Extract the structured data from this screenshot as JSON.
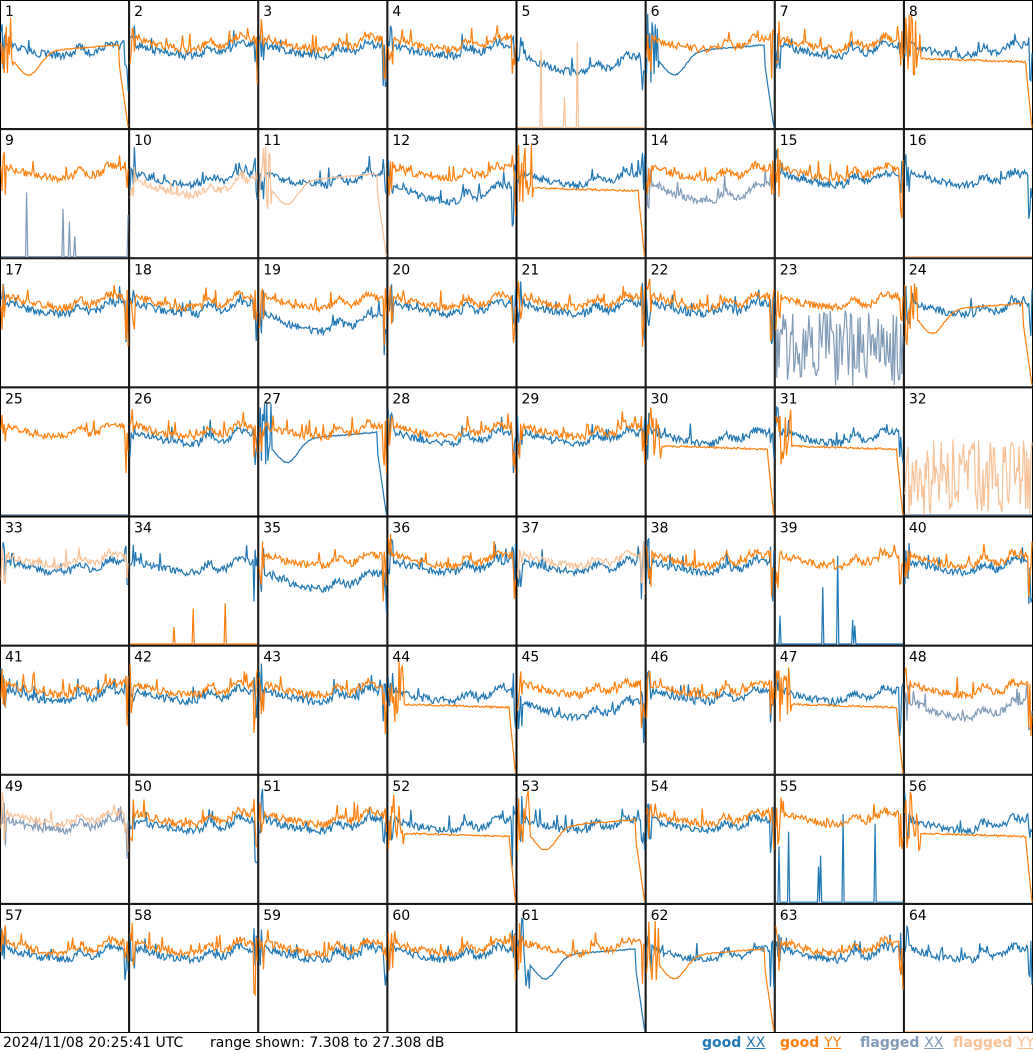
{
  "timestamp": "2024/11/08 20:25:41 UTC",
  "range_text": "range shown: 7.308 to 27.308 dB",
  "legend": {
    "good_xx": {
      "label": "good XX",
      "color": "#1f77b4"
    },
    "good_yy": {
      "label": "good YY",
      "color": "#ff7f0e"
    },
    "flagged_xx": {
      "label": "flagged XX",
      "color": "#7f9bb8"
    },
    "flagged_yy": {
      "label": "flagged YY",
      "color": "#f8c296"
    }
  },
  "chart_data": {
    "type": "line",
    "grid": {
      "rows": 8,
      "cols": 8
    },
    "ylim_db": [
      7.308,
      27.308
    ],
    "panels": [
      {
        "id": "1",
        "xx": "good",
        "yy": "good",
        "xx_shape": "normal",
        "yy_shape": "dip"
      },
      {
        "id": "2",
        "xx": "good",
        "yy": "good",
        "xx_shape": "normal",
        "yy_shape": "normal"
      },
      {
        "id": "3",
        "xx": "good",
        "yy": "good",
        "xx_shape": "normal",
        "yy_shape": "normal"
      },
      {
        "id": "4",
        "xx": "good",
        "yy": "good",
        "xx_shape": "normal",
        "yy_shape": "normal"
      },
      {
        "id": "5",
        "xx": "good",
        "yy": "flagged",
        "xx_shape": "lowered",
        "yy_shape": "spikes"
      },
      {
        "id": "6",
        "xx": "good",
        "yy": "good",
        "xx_shape": "dip",
        "yy_shape": "normal"
      },
      {
        "id": "7",
        "xx": "good",
        "yy": "good",
        "xx_shape": "normal",
        "yy_shape": "normal"
      },
      {
        "id": "8",
        "xx": "good",
        "yy": "good",
        "xx_shape": "normal",
        "yy_shape": "flat"
      },
      {
        "id": "9",
        "xx": "flagged",
        "yy": "good",
        "xx_shape": "spikes",
        "yy_shape": "normal"
      },
      {
        "id": "10",
        "xx": "good",
        "yy": "flagged",
        "xx_shape": "normal",
        "yy_shape": "lowered"
      },
      {
        "id": "11",
        "xx": "good",
        "yy": "flagged",
        "xx_shape": "normal",
        "yy_shape": "dip"
      },
      {
        "id": "12",
        "xx": "good",
        "yy": "good",
        "xx_shape": "lowered",
        "yy_shape": "normal"
      },
      {
        "id": "13",
        "xx": "good",
        "yy": "good",
        "xx_shape": "normal",
        "yy_shape": "flat"
      },
      {
        "id": "14",
        "xx": "flagged",
        "yy": "good",
        "xx_shape": "lowered",
        "yy_shape": "normal"
      },
      {
        "id": "15",
        "xx": "good",
        "yy": "good",
        "xx_shape": "normal",
        "yy_shape": "normal"
      },
      {
        "id": "16",
        "xx": "good",
        "yy": "flagged",
        "xx_shape": "normal",
        "yy_shape": "flat0"
      },
      {
        "id": "17",
        "xx": "good",
        "yy": "good",
        "xx_shape": "normal",
        "yy_shape": "normal"
      },
      {
        "id": "18",
        "xx": "good",
        "yy": "good",
        "xx_shape": "normal",
        "yy_shape": "normal"
      },
      {
        "id": "19",
        "xx": "good",
        "yy": "good",
        "xx_shape": "lowered",
        "yy_shape": "normal"
      },
      {
        "id": "20",
        "xx": "good",
        "yy": "good",
        "xx_shape": "normal",
        "yy_shape": "normal"
      },
      {
        "id": "21",
        "xx": "good",
        "yy": "good",
        "xx_shape": "normal",
        "yy_shape": "normal"
      },
      {
        "id": "22",
        "xx": "good",
        "yy": "good",
        "xx_shape": "normal",
        "yy_shape": "normal"
      },
      {
        "id": "23",
        "xx": "flagged",
        "yy": "good",
        "xx_shape": "noisy",
        "yy_shape": "normal"
      },
      {
        "id": "24",
        "xx": "good",
        "yy": "good",
        "xx_shape": "normal",
        "yy_shape": "dip"
      },
      {
        "id": "25",
        "xx": "flagged",
        "yy": "good",
        "xx_shape": "flat0",
        "yy_shape": "normal"
      },
      {
        "id": "26",
        "xx": "good",
        "yy": "good",
        "xx_shape": "normal",
        "yy_shape": "normal"
      },
      {
        "id": "27",
        "xx": "good",
        "yy": "good",
        "xx_shape": "dip",
        "yy_shape": "normal"
      },
      {
        "id": "28",
        "xx": "good",
        "yy": "good",
        "xx_shape": "normal",
        "yy_shape": "normal"
      },
      {
        "id": "29",
        "xx": "good",
        "yy": "good",
        "xx_shape": "normal",
        "yy_shape": "normal"
      },
      {
        "id": "30",
        "xx": "good",
        "yy": "good",
        "xx_shape": "normal",
        "yy_shape": "flat"
      },
      {
        "id": "31",
        "xx": "good",
        "yy": "good",
        "xx_shape": "normal",
        "yy_shape": "flat"
      },
      {
        "id": "32",
        "xx": "flagged",
        "yy": "flagged",
        "xx_shape": "flat0",
        "yy_shape": "noisy"
      },
      {
        "id": "33",
        "xx": "good",
        "yy": "flagged",
        "xx_shape": "normal",
        "yy_shape": "normal"
      },
      {
        "id": "34",
        "xx": "good",
        "yy": "good",
        "xx_shape": "normal",
        "yy_shape": "spikes"
      },
      {
        "id": "35",
        "xx": "good",
        "yy": "good",
        "xx_shape": "lowered",
        "yy_shape": "normal"
      },
      {
        "id": "36",
        "xx": "good",
        "yy": "good",
        "xx_shape": "normal",
        "yy_shape": "normal"
      },
      {
        "id": "37",
        "xx": "good",
        "yy": "flagged",
        "xx_shape": "normal",
        "yy_shape": "normal"
      },
      {
        "id": "38",
        "xx": "good",
        "yy": "good",
        "xx_shape": "normal",
        "yy_shape": "normal"
      },
      {
        "id": "39",
        "xx": "good",
        "yy": "good",
        "xx_shape": "spikes",
        "yy_shape": "normal"
      },
      {
        "id": "40",
        "xx": "good",
        "yy": "good",
        "xx_shape": "normal",
        "yy_shape": "normal"
      },
      {
        "id": "41",
        "xx": "good",
        "yy": "good",
        "xx_shape": "normal",
        "yy_shape": "normal"
      },
      {
        "id": "42",
        "xx": "good",
        "yy": "good",
        "xx_shape": "normal",
        "yy_shape": "normal"
      },
      {
        "id": "43",
        "xx": "good",
        "yy": "good",
        "xx_shape": "normal",
        "yy_shape": "normal"
      },
      {
        "id": "44",
        "xx": "good",
        "yy": "good",
        "xx_shape": "normal",
        "yy_shape": "flat"
      },
      {
        "id": "45",
        "xx": "good",
        "yy": "good",
        "xx_shape": "lowered",
        "yy_shape": "normal"
      },
      {
        "id": "46",
        "xx": "good",
        "yy": "good",
        "xx_shape": "normal",
        "yy_shape": "normal"
      },
      {
        "id": "47",
        "xx": "good",
        "yy": "good",
        "xx_shape": "normal",
        "yy_shape": "flat"
      },
      {
        "id": "48",
        "xx": "flagged",
        "yy": "good",
        "xx_shape": "lowered",
        "yy_shape": "normal"
      },
      {
        "id": "49",
        "xx": "flagged",
        "yy": "flagged",
        "xx_shape": "normal",
        "yy_shape": "normal"
      },
      {
        "id": "50",
        "xx": "good",
        "yy": "good",
        "xx_shape": "normal",
        "yy_shape": "normal"
      },
      {
        "id": "51",
        "xx": "good",
        "yy": "good",
        "xx_shape": "normal",
        "yy_shape": "normal"
      },
      {
        "id": "52",
        "xx": "good",
        "yy": "good",
        "xx_shape": "normal",
        "yy_shape": "flat"
      },
      {
        "id": "53",
        "xx": "good",
        "yy": "good",
        "xx_shape": "normal",
        "yy_shape": "dip"
      },
      {
        "id": "54",
        "xx": "good",
        "yy": "good",
        "xx_shape": "normal",
        "yy_shape": "normal"
      },
      {
        "id": "55",
        "xx": "good",
        "yy": "good",
        "xx_shape": "spikes",
        "yy_shape": "normal"
      },
      {
        "id": "56",
        "xx": "good",
        "yy": "good",
        "xx_shape": "normal",
        "yy_shape": "flat"
      },
      {
        "id": "57",
        "xx": "good",
        "yy": "good",
        "xx_shape": "normal",
        "yy_shape": "normal"
      },
      {
        "id": "58",
        "xx": "good",
        "yy": "good",
        "xx_shape": "normal",
        "yy_shape": "normal"
      },
      {
        "id": "59",
        "xx": "good",
        "yy": "good",
        "xx_shape": "normal",
        "yy_shape": "normal"
      },
      {
        "id": "60",
        "xx": "good",
        "yy": "good",
        "xx_shape": "normal",
        "yy_shape": "normal"
      },
      {
        "id": "61",
        "xx": "good",
        "yy": "good",
        "xx_shape": "dip",
        "yy_shape": "normal"
      },
      {
        "id": "62",
        "xx": "good",
        "yy": "good",
        "xx_shape": "normal",
        "yy_shape": "dip"
      },
      {
        "id": "63",
        "xx": "good",
        "yy": "good",
        "xx_shape": "normal",
        "yy_shape": "normal"
      },
      {
        "id": "64",
        "xx": "good",
        "yy": "flagged",
        "xx_shape": "normal",
        "yy_shape": "flat0"
      }
    ]
  }
}
